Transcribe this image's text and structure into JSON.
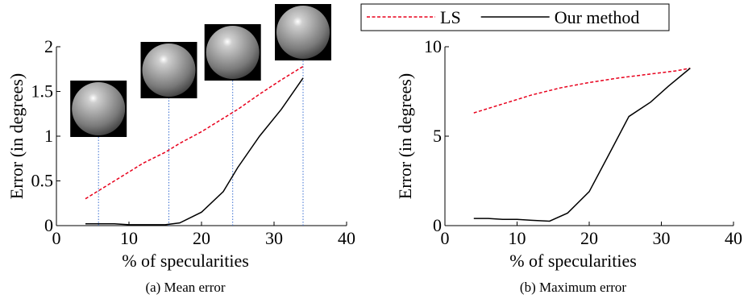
{
  "chart_data": [
    {
      "type": "line",
      "caption": "(a)  Mean error",
      "xlabel": "% of specularities",
      "ylabel": "Error (in degrees)",
      "xlim": [
        0,
        40
      ],
      "xticks": [
        0,
        10,
        20,
        30,
        40
      ],
      "ylim": [
        0,
        2
      ],
      "yticks": [
        0,
        0.5,
        1,
        1.5,
        2
      ],
      "markers_x": [
        5.8,
        15.5,
        24.3,
        34
      ],
      "series": [
        {
          "color": "#e8001c",
          "dash": true,
          "x": [
            4,
            6,
            8,
            10,
            12,
            15,
            17,
            20,
            23,
            25,
            28,
            31,
            34
          ],
          "values": [
            0.3,
            0.4,
            0.5,
            0.6,
            0.7,
            0.82,
            0.92,
            1.05,
            1.2,
            1.3,
            1.47,
            1.63,
            1.78
          ]
        },
        {
          "color": "#000000",
          "dash": false,
          "x": [
            4,
            6,
            8,
            10,
            12,
            15,
            17,
            20,
            23,
            25,
            28,
            31,
            34
          ],
          "values": [
            0.02,
            0.02,
            0.02,
            0.01,
            0.01,
            0.01,
            0.03,
            0.15,
            0.38,
            0.65,
            1.0,
            1.3,
            1.65
          ]
        }
      ]
    },
    {
      "type": "line",
      "caption": "(b) Maximum error",
      "xlabel": "% of specularities",
      "ylabel": "Error (in degrees)",
      "xlim": [
        0,
        40
      ],
      "xticks": [
        0,
        10,
        20,
        30,
        40
      ],
      "ylim": [
        0,
        10
      ],
      "yticks": [
        0,
        5,
        10
      ],
      "legend": "top",
      "series": [
        {
          "name": "LS",
          "color": "#e8001c",
          "dash": true,
          "x": [
            4,
            8,
            12,
            16,
            20,
            24,
            28,
            32,
            34
          ],
          "values": [
            6.3,
            6.8,
            7.3,
            7.7,
            8.0,
            8.25,
            8.45,
            8.65,
            8.8
          ]
        },
        {
          "name": "Our method",
          "color": "#000000",
          "dash": false,
          "x": [
            4,
            6,
            8,
            10,
            12,
            14.5,
            17,
            20,
            22.5,
            25.5,
            28.5,
            31,
            34
          ],
          "values": [
            0.4,
            0.4,
            0.35,
            0.35,
            0.3,
            0.25,
            0.7,
            1.9,
            3.8,
            6.1,
            6.9,
            7.8,
            8.8
          ]
        }
      ]
    }
  ]
}
